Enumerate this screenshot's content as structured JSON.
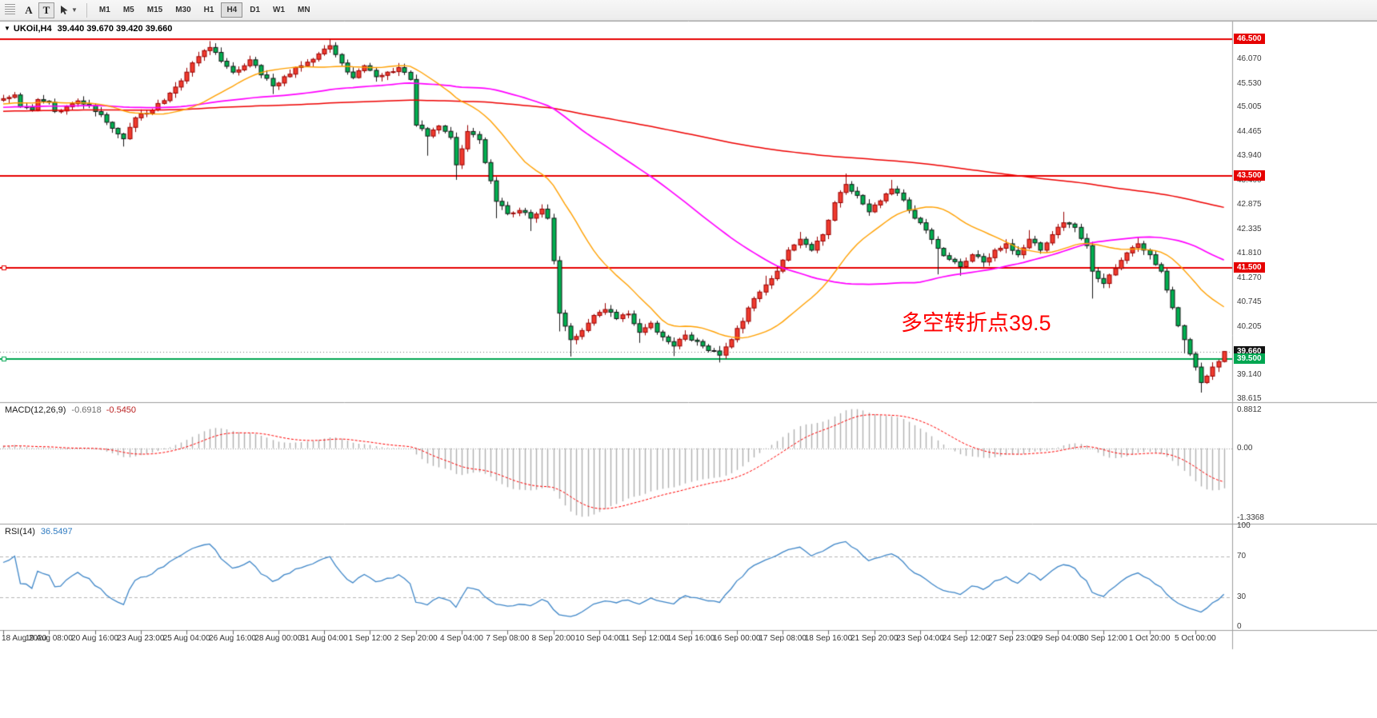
{
  "toolbar": {
    "buttons": [
      {
        "label": "A",
        "boxed": false
      },
      {
        "label": "T",
        "boxed": true
      }
    ],
    "cursor_tool": {
      "icon": "cursor-arrow",
      "dropdown": true
    },
    "timeframes": [
      {
        "label": "M1",
        "active": false
      },
      {
        "label": "M5",
        "active": false
      },
      {
        "label": "M15",
        "active": false
      },
      {
        "label": "M30",
        "active": false
      },
      {
        "label": "H1",
        "active": false
      },
      {
        "label": "H4",
        "active": true
      },
      {
        "label": "D1",
        "active": false
      },
      {
        "label": "W1",
        "active": false
      },
      {
        "label": "MN",
        "active": false
      }
    ]
  },
  "main_chart": {
    "collapse_icon": "▼",
    "title_symbol": "UKOil,H4",
    "title_ohlc": "39.440 39.670 39.420 39.660",
    "symbol": "UKOil",
    "period": "H4",
    "ohlc": {
      "open": "39.440",
      "high": "39.670",
      "low": "39.420",
      "close": "39.660"
    },
    "annotation": {
      "text": "多空转折点39.5",
      "color": "#ff0000"
    },
    "axis_labels": [
      "46.070",
      "45.530",
      "45.005",
      "44.465",
      "43.940",
      "43.400",
      "42.875",
      "42.335",
      "41.810",
      "41.270",
      "40.745",
      "40.205",
      "39.140",
      "38.615"
    ],
    "badges": [
      {
        "text": "46.500",
        "bg": "#e60000"
      },
      {
        "text": "43.500",
        "bg": "#e60000"
      },
      {
        "text": "41.500",
        "bg": "#e60000"
      },
      {
        "text": "39.660",
        "bg": "#111111"
      },
      {
        "text": "39.500",
        "bg": "#00a651"
      }
    ]
  },
  "macd_panel": {
    "label": "MACD(12,26,9)",
    "values": [
      "-0.6918",
      "-0.5450"
    ],
    "scale_labels": [
      "0.8812",
      "0.00",
      "-1.3368"
    ]
  },
  "rsi_panel": {
    "label": "RSI(14)",
    "value": "36.5497",
    "levels": [
      70,
      30
    ],
    "scale_labels": [
      "100",
      "70",
      "30",
      "0"
    ]
  },
  "chart_data": {
    "type": "candlestick",
    "symbol": "UKOil",
    "timeframe": "H4",
    "price_range": [
      38.55,
      46.87
    ],
    "bars_visible": 214,
    "pre_history_bars": 210,
    "label_every_bars": 8,
    "anchor_format": "[bar_index, close, high_or_null, low_or_null] — path estimated from pixels",
    "pre_history_anchors": [
      [
        -210,
        44.6
      ],
      [
        -160,
        44.85
      ],
      [
        -110,
        45.0
      ],
      [
        -60,
        44.9
      ],
      [
        -30,
        45.05
      ],
      [
        -15,
        45.0
      ]
    ],
    "price_anchors": [
      [
        0,
        45.2
      ],
      [
        2,
        45.28
      ],
      [
        3,
        45.02
      ],
      [
        5,
        44.95
      ],
      [
        6,
        45.18
      ],
      [
        8,
        45.12
      ],
      [
        9,
        44.92
      ],
      [
        11,
        45.02
      ],
      [
        13,
        45.15
      ],
      [
        15,
        45.05
      ],
      [
        17,
        44.85
      ],
      [
        19,
        44.55
      ],
      [
        21,
        44.32,
        null,
        44.15
      ],
      [
        23,
        44.78
      ],
      [
        26,
        44.95
      ],
      [
        29,
        45.32
      ],
      [
        32,
        45.78
      ],
      [
        34,
        46.12
      ],
      [
        36,
        46.32,
        46.46,
        null
      ],
      [
        38,
        46.02
      ],
      [
        40,
        45.78
      ],
      [
        42,
        45.92
      ],
      [
        43,
        46.05
      ],
      [
        45,
        45.72
      ],
      [
        47,
        45.48,
        null,
        45.3
      ],
      [
        49,
        45.68
      ],
      [
        52,
        45.92
      ],
      [
        55,
        46.18
      ],
      [
        57,
        46.36,
        46.5,
        null
      ],
      [
        59,
        45.98
      ],
      [
        61,
        45.66
      ],
      [
        63,
        45.92
      ],
      [
        65,
        45.68
      ],
      [
        67,
        45.78
      ],
      [
        69,
        45.88,
        45.98,
        null
      ],
      [
        71,
        45.62
      ],
      [
        72,
        44.62
      ],
      [
        74,
        44.38,
        null,
        43.95
      ],
      [
        76,
        44.6
      ],
      [
        78,
        44.35
      ],
      [
        79,
        43.75,
        null,
        43.42
      ],
      [
        80,
        44.1
      ],
      [
        81,
        44.48,
        44.62,
        null
      ],
      [
        83,
        44.3
      ],
      [
        84,
        43.8
      ],
      [
        85,
        43.4
      ],
      [
        86,
        42.95,
        null,
        42.58
      ],
      [
        88,
        42.68
      ],
      [
        90,
        42.75
      ],
      [
        92,
        42.58,
        null,
        42.3
      ],
      [
        94,
        42.78
      ],
      [
        95,
        42.58
      ],
      [
        96,
        41.65
      ],
      [
        97,
        40.5,
        null,
        40.1
      ],
      [
        99,
        39.92,
        null,
        39.55
      ],
      [
        101,
        40.12
      ],
      [
        103,
        40.45
      ],
      [
        105,
        40.58,
        40.72,
        null
      ],
      [
        107,
        40.38
      ],
      [
        109,
        40.48
      ],
      [
        111,
        40.08,
        null,
        39.85
      ],
      [
        113,
        40.28
      ],
      [
        115,
        39.98
      ],
      [
        117,
        39.78,
        null,
        39.56
      ],
      [
        119,
        40.02
      ],
      [
        121,
        39.88
      ],
      [
        123,
        39.68
      ],
      [
        125,
        39.58,
        null,
        39.42
      ],
      [
        127,
        39.92
      ],
      [
        129,
        40.32
      ],
      [
        131,
        40.82
      ],
      [
        133,
        41.12,
        41.32,
        null
      ],
      [
        135,
        41.42
      ],
      [
        137,
        41.88
      ],
      [
        139,
        42.12,
        42.28,
        null
      ],
      [
        141,
        41.88
      ],
      [
        143,
        42.22
      ],
      [
        145,
        42.92
      ],
      [
        147,
        43.32,
        43.56,
        null
      ],
      [
        149,
        43.08
      ],
      [
        151,
        42.72
      ],
      [
        153,
        42.96
      ],
      [
        155,
        43.22,
        43.42,
        null
      ],
      [
        157,
        42.98
      ],
      [
        159,
        42.58
      ],
      [
        161,
        42.32
      ],
      [
        163,
        41.92,
        null,
        41.35
      ],
      [
        165,
        41.68
      ],
      [
        167,
        41.52,
        null,
        41.32
      ],
      [
        169,
        41.78
      ],
      [
        171,
        41.62
      ],
      [
        173,
        41.88
      ],
      [
        175,
        42.02
      ],
      [
        177,
        41.78
      ],
      [
        179,
        42.12,
        42.32,
        null
      ],
      [
        181,
        41.88
      ],
      [
        183,
        42.22
      ],
      [
        185,
        42.48,
        42.72,
        null
      ],
      [
        187,
        42.38
      ],
      [
        189,
        41.98
      ],
      [
        190,
        41.42,
        null,
        40.82
      ],
      [
        192,
        41.15
      ],
      [
        194,
        41.48
      ],
      [
        196,
        41.82
      ],
      [
        198,
        42.02,
        42.16,
        null
      ],
      [
        200,
        41.78
      ],
      [
        202,
        41.42
      ],
      [
        204,
        40.62
      ],
      [
        206,
        39.92,
        null,
        39.62
      ],
      [
        208,
        39.32
      ],
      [
        209,
        38.98,
        null,
        38.76
      ],
      [
        210,
        39.12
      ],
      [
        211,
        39.32
      ],
      [
        212,
        39.44
      ],
      [
        213,
        39.66,
        39.67,
        39.42
      ]
    ],
    "last_bar": [
      39.44,
      39.67,
      39.42,
      39.66
    ],
    "candle_colors": {
      "bull_body": "#f03b2e",
      "bull_edge": "#990000",
      "bear_body": "#00b050",
      "bear_edge": "#151515"
    },
    "moving_averages": [
      {
        "name": "MA-slow",
        "period": 200,
        "color": "#ee0000",
        "width": 1.5
      },
      {
        "name": "MA-mid",
        "period": 64,
        "color": "#ff00ff",
        "width": 1.7
      },
      {
        "name": "MA-fast",
        "period": 20,
        "color": "#ffa000",
        "width": 1.4
      }
    ],
    "h_lines": [
      {
        "value": 46.5,
        "color": "#e60000",
        "width": 2,
        "handle": false
      },
      {
        "value": 43.5,
        "color": "#e60000",
        "width": 2,
        "handle": false
      },
      {
        "value": 41.5,
        "color": "#e60000",
        "width": 2,
        "handle": true
      },
      {
        "value": 39.5,
        "color": "#00a651",
        "width": 2,
        "handle": true
      },
      {
        "value": 39.66,
        "color": "#777777",
        "width": 1,
        "dash": [
          1,
          3
        ],
        "handle": false
      }
    ],
    "indicators": {
      "macd": {
        "fast": 12,
        "slow": 26,
        "signal": 9,
        "current": [
          -0.6918,
          -0.545
        ]
      },
      "rsi": {
        "period": 14,
        "current": 36.5497,
        "levels": [
          30,
          70
        ]
      }
    },
    "macd_colors": {
      "histogram": "#b0b0b0",
      "signal": "#ff0000"
    },
    "rsi_color": "#3e86c8",
    "x_labels": [
      "18 Aug 2020",
      "19 Aug 08:00",
      "20 Aug 16:00",
      "23 Aug 23:00",
      "25 Aug 04:00",
      "26 Aug 16:00",
      "28 Aug 00:00",
      "31 Aug 04:00",
      "1 Sep 12:00",
      "2 Sep 20:00",
      "4 Sep 04:00",
      "7 Sep 08:00",
      "8 Sep 20:00",
      "10 Sep 04:00",
      "11 Sep 12:00",
      "14 Sep 16:00",
      "16 Sep 00:00",
      "17 Sep 08:00",
      "18 Sep 16:00",
      "21 Sep 20:00",
      "23 Sep 04:00",
      "24 Sep 12:00",
      "27 Sep 23:00",
      "29 Sep 04:00",
      "30 Sep 12:00",
      "1 Oct 20:00",
      "5 Oct 00:00"
    ]
  }
}
